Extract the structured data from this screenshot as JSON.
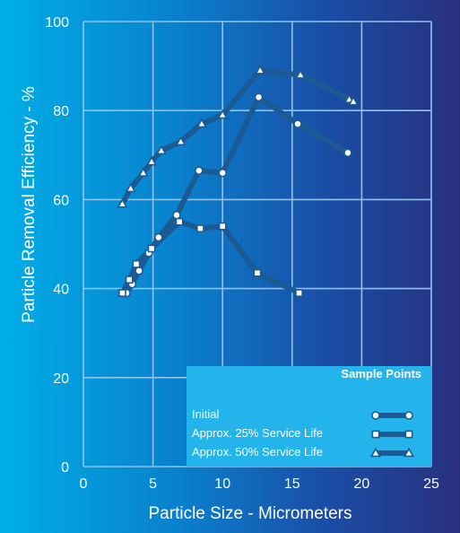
{
  "chart_data": {
    "type": "line",
    "xlabel": "Particle Size - Micrometers",
    "ylabel": "Particle Removal Efficiency - %",
    "xlim": [
      0,
      25
    ],
    "ylim": [
      0,
      100
    ],
    "xticks": [
      0,
      5,
      10,
      15,
      20,
      25
    ],
    "yticks": [
      0,
      20,
      40,
      60,
      80,
      100
    ],
    "grid": true,
    "legend_title": "Sample Points",
    "legend_position": "bottom-right",
    "series": [
      {
        "name": "Initial",
        "marker": "circle",
        "x": [
          3.1,
          3.5,
          4.0,
          4.7,
          5.4,
          6.7,
          8.3,
          10.0,
          12.6,
          15.4,
          19.0
        ],
        "y": [
          39,
          41,
          44,
          48,
          51.5,
          56.5,
          66.5,
          66,
          83,
          77,
          70.5
        ]
      },
      {
        "name": "Approx. 25% Service Life",
        "marker": "square",
        "x": [
          2.8,
          3.3,
          3.8,
          4.9,
          6.9,
          8.4,
          10.0,
          12.5,
          15.5
        ],
        "y": [
          39,
          42,
          45.5,
          49,
          55,
          53.5,
          54,
          43.5,
          39
        ]
      },
      {
        "name": "Approx. 50% Service Life",
        "marker": "triangle",
        "x": [
          2.8,
          3.4,
          4.3,
          4.9,
          5.6,
          7.0,
          8.5,
          10.0,
          12.7,
          15.6,
          19.1,
          19.4
        ],
        "y": [
          59,
          62.5,
          66,
          68.5,
          71,
          73,
          77,
          79,
          89,
          88,
          82.5,
          82
        ]
      }
    ],
    "colors": {
      "line": "#1c5a94",
      "marker_fill": "#ffffff",
      "grid": "#8fc4ee",
      "axis_text": "#ffffff"
    }
  }
}
